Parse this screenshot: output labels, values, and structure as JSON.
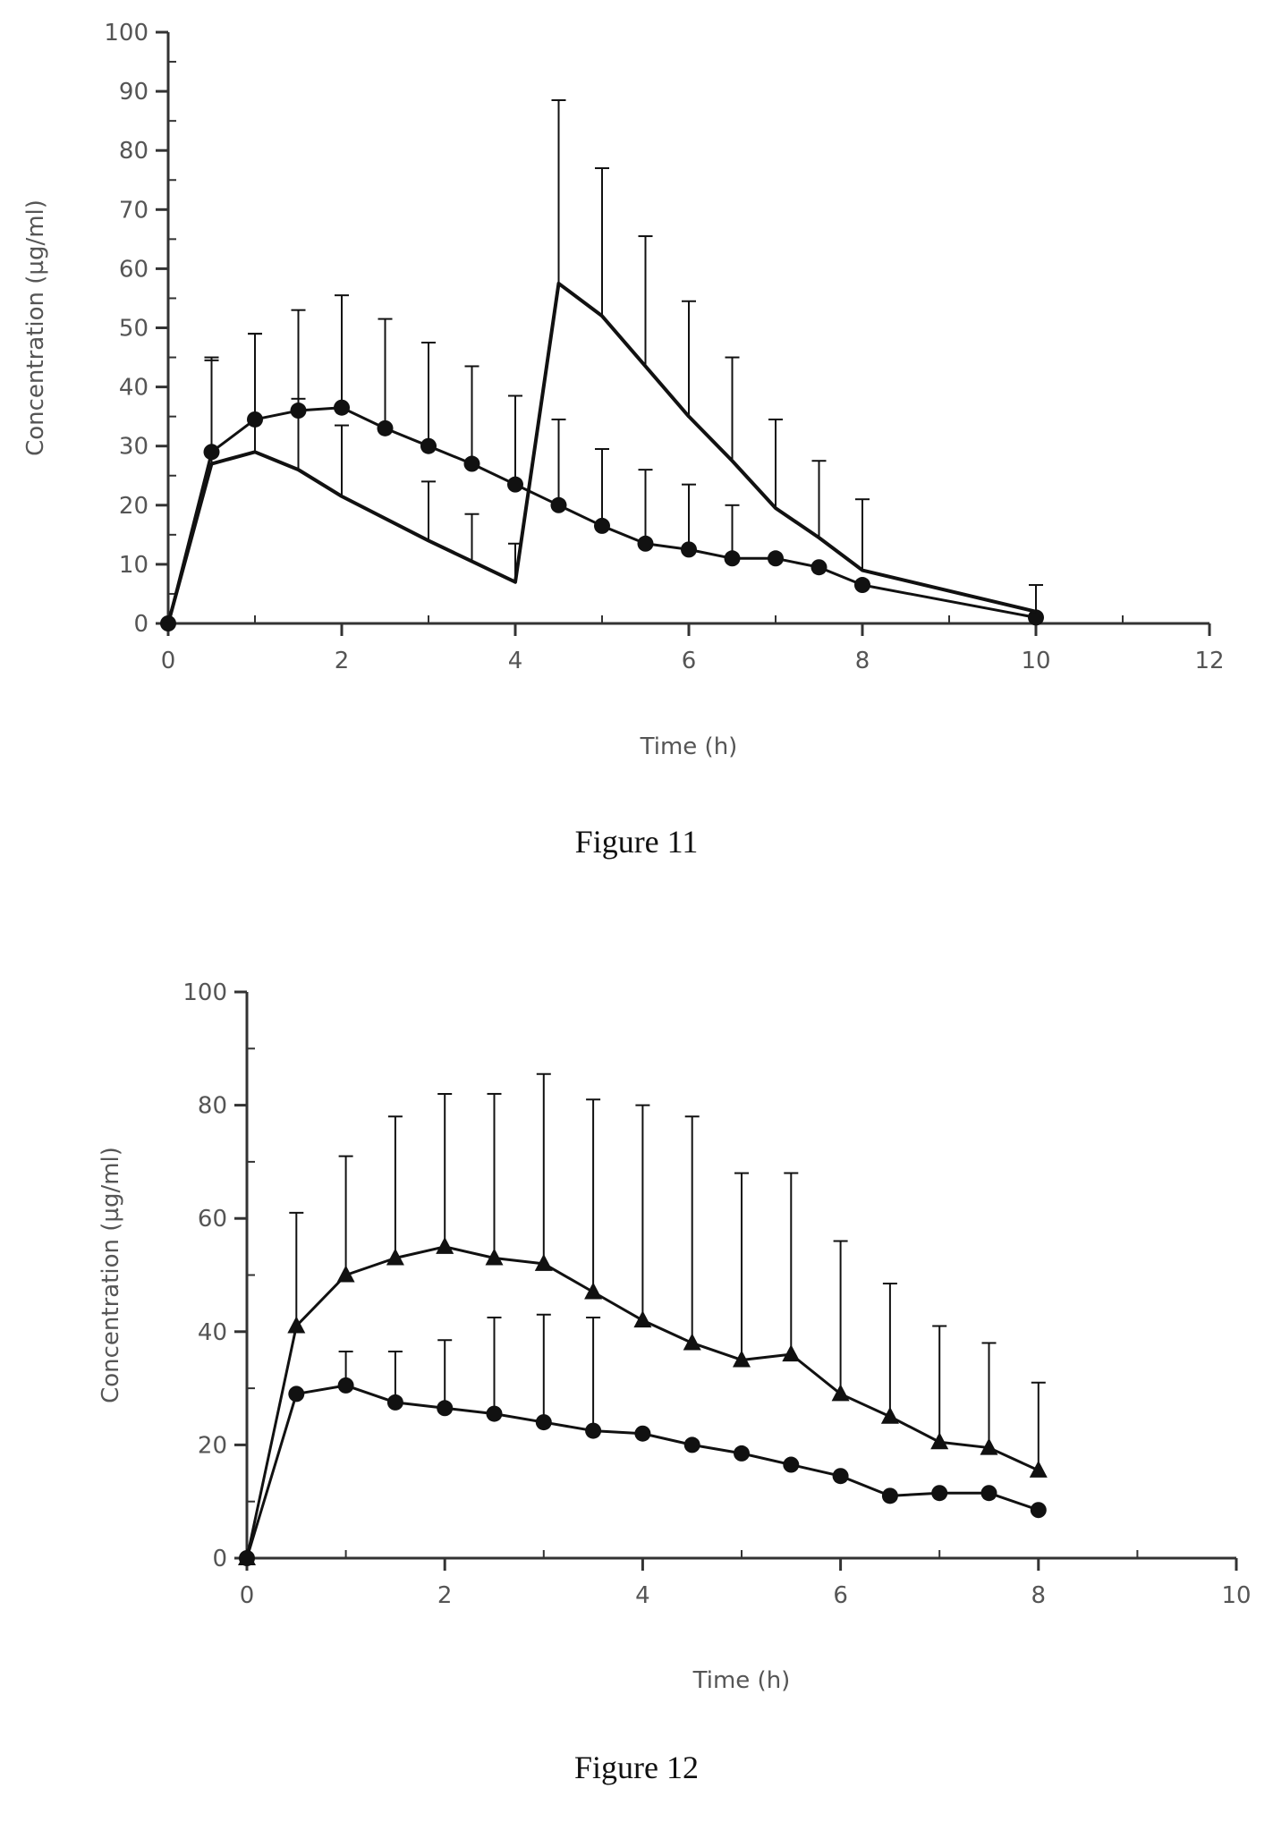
{
  "captions": {
    "fig11": "Figure 11",
    "fig12": "Figure 12"
  },
  "colors": {
    "line": "#111111",
    "axis": "#333333",
    "text": "#555555"
  },
  "chart_data": [
    {
      "type": "line",
      "xlabel": "Time (h)",
      "ylabel": "Concentration (µg/ml)",
      "xlim": [
        0,
        12
      ],
      "ylim": [
        0,
        100
      ],
      "xticks": [
        0,
        2,
        4,
        6,
        8,
        10,
        12
      ],
      "yticks": [
        0,
        10,
        20,
        30,
        40,
        50,
        60,
        70,
        80,
        90,
        100
      ],
      "grid": false,
      "series": [
        {
          "marker": "circle",
          "x": [
            0,
            0.5,
            1,
            1.5,
            2,
            2.5,
            3,
            3.5,
            4,
            4.5,
            5,
            5.5,
            6,
            6.5,
            7,
            7.5,
            8,
            10
          ],
          "y": [
            0,
            29,
            34.5,
            36,
            36.5,
            33,
            30,
            27,
            23.5,
            20,
            16.5,
            13.5,
            12.5,
            11,
            11,
            9.5,
            6.5,
            1
          ],
          "err": [
            0,
            16,
            14.5,
            17,
            19,
            18.5,
            17.5,
            16.5,
            15,
            14.5,
            13,
            12.5,
            11,
            9,
            0,
            0,
            0,
            0
          ]
        },
        {
          "marker": "none",
          "x": [
            0,
            0.5,
            1,
            1.5,
            2,
            3,
            3.5,
            4,
            4.5,
            5,
            5.5,
            6,
            6.5,
            7,
            7.5,
            8,
            10
          ],
          "y": [
            0,
            27,
            29,
            26,
            21.5,
            14,
            10.5,
            7,
            57.5,
            52,
            43.5,
            35,
            27.5,
            19.5,
            14.5,
            9,
            2
          ],
          "err": [
            0,
            17.5,
            20,
            12,
            12,
            10,
            8,
            6.5,
            31,
            25,
            22,
            19.5,
            17.5,
            15,
            13,
            12,
            4.5
          ]
        }
      ]
    },
    {
      "type": "line",
      "xlabel": "Time (h)",
      "ylabel": "Concentration (µg/ml)",
      "xlim": [
        0,
        10
      ],
      "ylim": [
        0,
        100
      ],
      "xticks": [
        0,
        2,
        4,
        6,
        8,
        10
      ],
      "yticks": [
        0,
        20,
        40,
        60,
        80,
        100
      ],
      "grid": false,
      "series": [
        {
          "marker": "triangle",
          "x": [
            0,
            0.5,
            1,
            1.5,
            2,
            2.5,
            3,
            3.5,
            4,
            4.5,
            5,
            5.5,
            6,
            6.5,
            7,
            7.5,
            8
          ],
          "y": [
            0,
            41,
            50,
            53,
            55,
            53,
            52,
            47,
            42,
            38,
            35,
            36,
            29,
            25,
            20.5,
            19.5,
            15.5
          ],
          "err": [
            0,
            20,
            21,
            25,
            27,
            29,
            33.5,
            34,
            38,
            40,
            33,
            32,
            27,
            23.5,
            20.5,
            18.5,
            15.5
          ]
        },
        {
          "marker": "circle",
          "x": [
            0,
            0.5,
            1,
            1.5,
            2,
            2.5,
            3,
            3.5,
            4,
            4.5,
            5,
            5.5,
            6,
            6.5,
            7,
            7.5,
            8
          ],
          "y": [
            0,
            29,
            30.5,
            27.5,
            26.5,
            25.5,
            24,
            22.5,
            22,
            20,
            18.5,
            16.5,
            14.5,
            11,
            11.5,
            11.5,
            8.5
          ],
          "err": [
            0,
            0,
            6,
            9,
            12,
            17,
            19,
            20,
            0,
            0,
            0,
            0,
            0,
            0,
            0,
            0,
            0
          ]
        }
      ]
    }
  ]
}
